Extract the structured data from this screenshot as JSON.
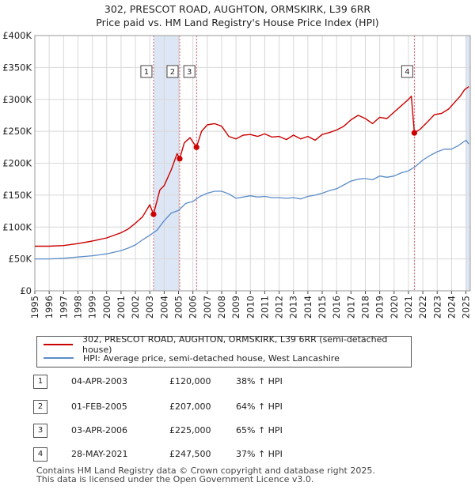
{
  "title": {
    "line1": "302, PRESCOT ROAD, AUGHTON, ORMSKIRK, L39 6RR",
    "line2": "Price paid vs. HM Land Registry's House Price Index (HPI)"
  },
  "colors": {
    "property": "#cc0000",
    "hpi": "#5b8cc8",
    "shade": "#dde6f4",
    "marker_line": "#e06666"
  },
  "chart_data": {
    "type": "line",
    "y_tick_labels": [
      "£0",
      "£50K",
      "£100K",
      "£150K",
      "£200K",
      "£250K",
      "£300K",
      "£350K",
      "£400K"
    ],
    "y_ticks": [
      0,
      50000,
      100000,
      150000,
      200000,
      250000,
      300000,
      350000,
      400000
    ],
    "ylim": [
      0,
      400000
    ],
    "x_tick_labels": [
      "1995",
      "1996",
      "1997",
      "1998",
      "1999",
      "2000",
      "2001",
      "2002",
      "2003",
      "2004",
      "2005",
      "2006",
      "2007",
      "2008",
      "2009",
      "2010",
      "2011",
      "2012",
      "2013",
      "2014",
      "2015",
      "2016",
      "2017",
      "2018",
      "2019",
      "2020",
      "2021",
      "2022",
      "2023",
      "2024",
      "2025"
    ],
    "xlim": [
      1995,
      2025.3
    ],
    "series": [
      {
        "name": "302, PRESCOT ROAD, AUGHTON, ORMSKIRK, L39 6RR (semi-detached house)",
        "key": "property",
        "x": [
          1995.0,
          1996.0,
          1997.0,
          1998.0,
          1999.0,
          2000.0,
          2001.0,
          2001.5,
          2002.0,
          2002.5,
          2003.0,
          2003.26,
          2003.7,
          2004.0,
          2004.5,
          2004.9,
          2005.08,
          2005.4,
          2005.8,
          2006.25,
          2006.6,
          2007.0,
          2007.5,
          2008.0,
          2008.5,
          2009.0,
          2009.5,
          2010.0,
          2010.5,
          2011.0,
          2011.5,
          2012.0,
          2012.5,
          2013.0,
          2013.5,
          2014.0,
          2014.5,
          2015.0,
          2015.5,
          2016.0,
          2016.5,
          2017.0,
          2017.5,
          2018.0,
          2018.5,
          2019.0,
          2019.5,
          2020.0,
          2020.5,
          2021.0,
          2021.2,
          2021.41,
          2021.8,
          2022.3,
          2022.8,
          2023.3,
          2023.8,
          2024.2,
          2024.6,
          2024.9,
          2025.2
        ],
        "y": [
          70000,
          70000,
          71000,
          74000,
          78000,
          83000,
          91000,
          97000,
          106000,
          116000,
          135000,
          120000,
          158000,
          165000,
          190000,
          215000,
          207000,
          232000,
          240000,
          225000,
          250000,
          260000,
          262000,
          258000,
          242000,
          238000,
          244000,
          245000,
          242000,
          246000,
          241000,
          242000,
          237000,
          244000,
          238000,
          242000,
          236000,
          245000,
          248000,
          252000,
          258000,
          268000,
          275000,
          270000,
          262000,
          272000,
          270000,
          280000,
          290000,
          300000,
          305000,
          247500,
          253000,
          264000,
          276000,
          278000,
          285000,
          295000,
          305000,
          315000,
          320000
        ]
      },
      {
        "name": "HPI: Average price, semi-detached house, West Lancashire",
        "key": "hpi",
        "x": [
          1995.0,
          1996.0,
          1997.0,
          1998.0,
          1999.0,
          2000.0,
          2001.0,
          2001.5,
          2002.0,
          2002.5,
          2003.0,
          2003.5,
          2004.0,
          2004.5,
          2005.0,
          2005.5,
          2006.0,
          2006.5,
          2007.0,
          2007.5,
          2008.0,
          2008.5,
          2009.0,
          2009.5,
          2010.0,
          2010.5,
          2011.0,
          2011.5,
          2012.0,
          2012.5,
          2013.0,
          2013.5,
          2014.0,
          2014.5,
          2015.0,
          2015.5,
          2016.0,
          2016.5,
          2017.0,
          2017.5,
          2018.0,
          2018.5,
          2019.0,
          2019.5,
          2020.0,
          2020.5,
          2021.0,
          2021.5,
          2022.0,
          2022.5,
          2023.0,
          2023.5,
          2024.0,
          2024.5,
          2025.0,
          2025.2
        ],
        "y": [
          50000,
          50000,
          51000,
          53000,
          55000,
          58000,
          63000,
          67000,
          72000,
          80000,
          87000,
          95000,
          110000,
          122000,
          126000,
          137000,
          140000,
          148000,
          153000,
          156000,
          156000,
          152000,
          145000,
          147000,
          149000,
          147000,
          148000,
          146000,
          146000,
          145000,
          146000,
          144000,
          148000,
          150000,
          153000,
          157000,
          160000,
          166000,
          172000,
          175000,
          176000,
          174000,
          180000,
          178000,
          180000,
          185000,
          188000,
          195000,
          205000,
          212000,
          218000,
          222000,
          222000,
          228000,
          236000,
          230000
        ]
      }
    ],
    "sales": [
      {
        "label": "1",
        "date": "04-APR-2003",
        "x": 2003.26,
        "price": "£120,000",
        "value": 120000,
        "hpi_change": "38% ↑ HPI"
      },
      {
        "label": "2",
        "date": "01-FEB-2005",
        "x": 2005.08,
        "price": "£207,000",
        "value": 207000,
        "hpi_change": "64% ↑ HPI"
      },
      {
        "label": "3",
        "date": "03-APR-2006",
        "x": 2006.25,
        "price": "£225,000",
        "value": 225000,
        "hpi_change": "65% ↑ HPI"
      },
      {
        "label": "4",
        "date": "28-MAY-2021",
        "x": 2021.41,
        "price": "£247,500",
        "value": 247500,
        "hpi_change": "37% ↑ HPI"
      }
    ],
    "shaded_ranges": [
      [
        2003.26,
        2005.08
      ],
      [
        2006.25,
        2006.3
      ],
      [
        2021.41,
        2021.45
      ],
      [
        2025.0,
        2025.3
      ]
    ]
  },
  "legend": {
    "property": "302, PRESCOT ROAD, AUGHTON, ORMSKIRK, L39 6RR (semi-detached house)",
    "hpi": "HPI: Average price, semi-detached house, West Lancashire"
  },
  "footer": {
    "line1": "Contains HM Land Registry data © Crown copyright and database right 2025.",
    "line2": "This data is licensed under the Open Government Licence v3.0."
  }
}
